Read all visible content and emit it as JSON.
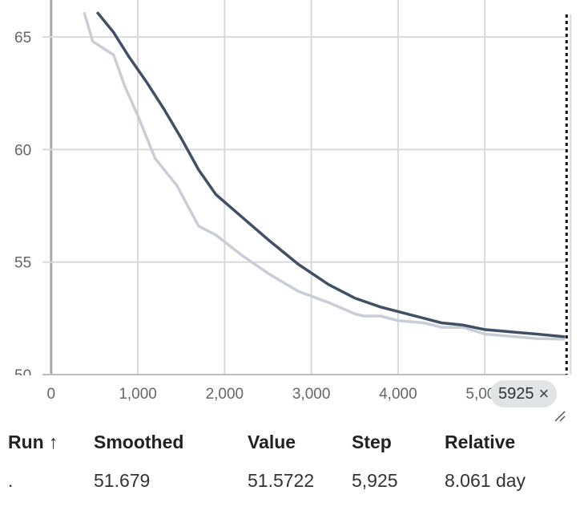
{
  "chart_data": {
    "type": "line",
    "x_ticks": [
      "0",
      "1,000",
      "2,000",
      "3,000",
      "4,000",
      "5,000"
    ],
    "y_ticks": [
      "50",
      "55",
      "60",
      "65"
    ],
    "xlim": [
      -100,
      5950
    ],
    "ylim": [
      50,
      66
    ],
    "grid": true,
    "series": [
      {
        "color": "#c9ced6",
        "x": [
          380,
          480,
          720,
          850,
          1000,
          1200,
          1450,
          1700,
          1900,
          2200,
          2500,
          2850,
          3200,
          3500,
          3600,
          3800,
          4000,
          4300,
          4500,
          4750,
          5000,
          5300,
          5600,
          5925
        ],
        "y": [
          66.1,
          64.8,
          64.2,
          62.8,
          61.5,
          59.6,
          58.4,
          56.6,
          56.2,
          55.3,
          54.5,
          53.7,
          53.2,
          52.7,
          52.6,
          52.6,
          52.4,
          52.3,
          52.1,
          52.1,
          51.8,
          51.7,
          51.6,
          51.57
        ]
      },
      {
        "color": "#425066",
        "x": [
          530,
          720,
          900,
          1100,
          1300,
          1500,
          1700,
          1900,
          2200,
          2500,
          2850,
          3200,
          3500,
          3800,
          4000,
          4300,
          4500,
          4750,
          5000,
          5300,
          5600,
          5925
        ],
        "y": [
          66.1,
          65.2,
          64.1,
          63.0,
          61.8,
          60.5,
          59.1,
          58.0,
          57.0,
          56.0,
          54.9,
          54.0,
          53.4,
          53.0,
          52.8,
          52.5,
          52.3,
          52.2,
          52.0,
          51.9,
          51.8,
          51.68
        ]
      }
    ],
    "cursor_step": 5925
  },
  "cursor": {
    "label": "5925"
  },
  "table": {
    "headers": {
      "run": "Run",
      "smoothed": "Smoothed",
      "value": "Value",
      "step": "Step",
      "relative": "Relative"
    },
    "sort_arrow": "↑",
    "row": {
      "run": ".",
      "smoothed": "51.679",
      "value": "51.5722",
      "step": "5,925",
      "relative": "8.061 day"
    }
  }
}
